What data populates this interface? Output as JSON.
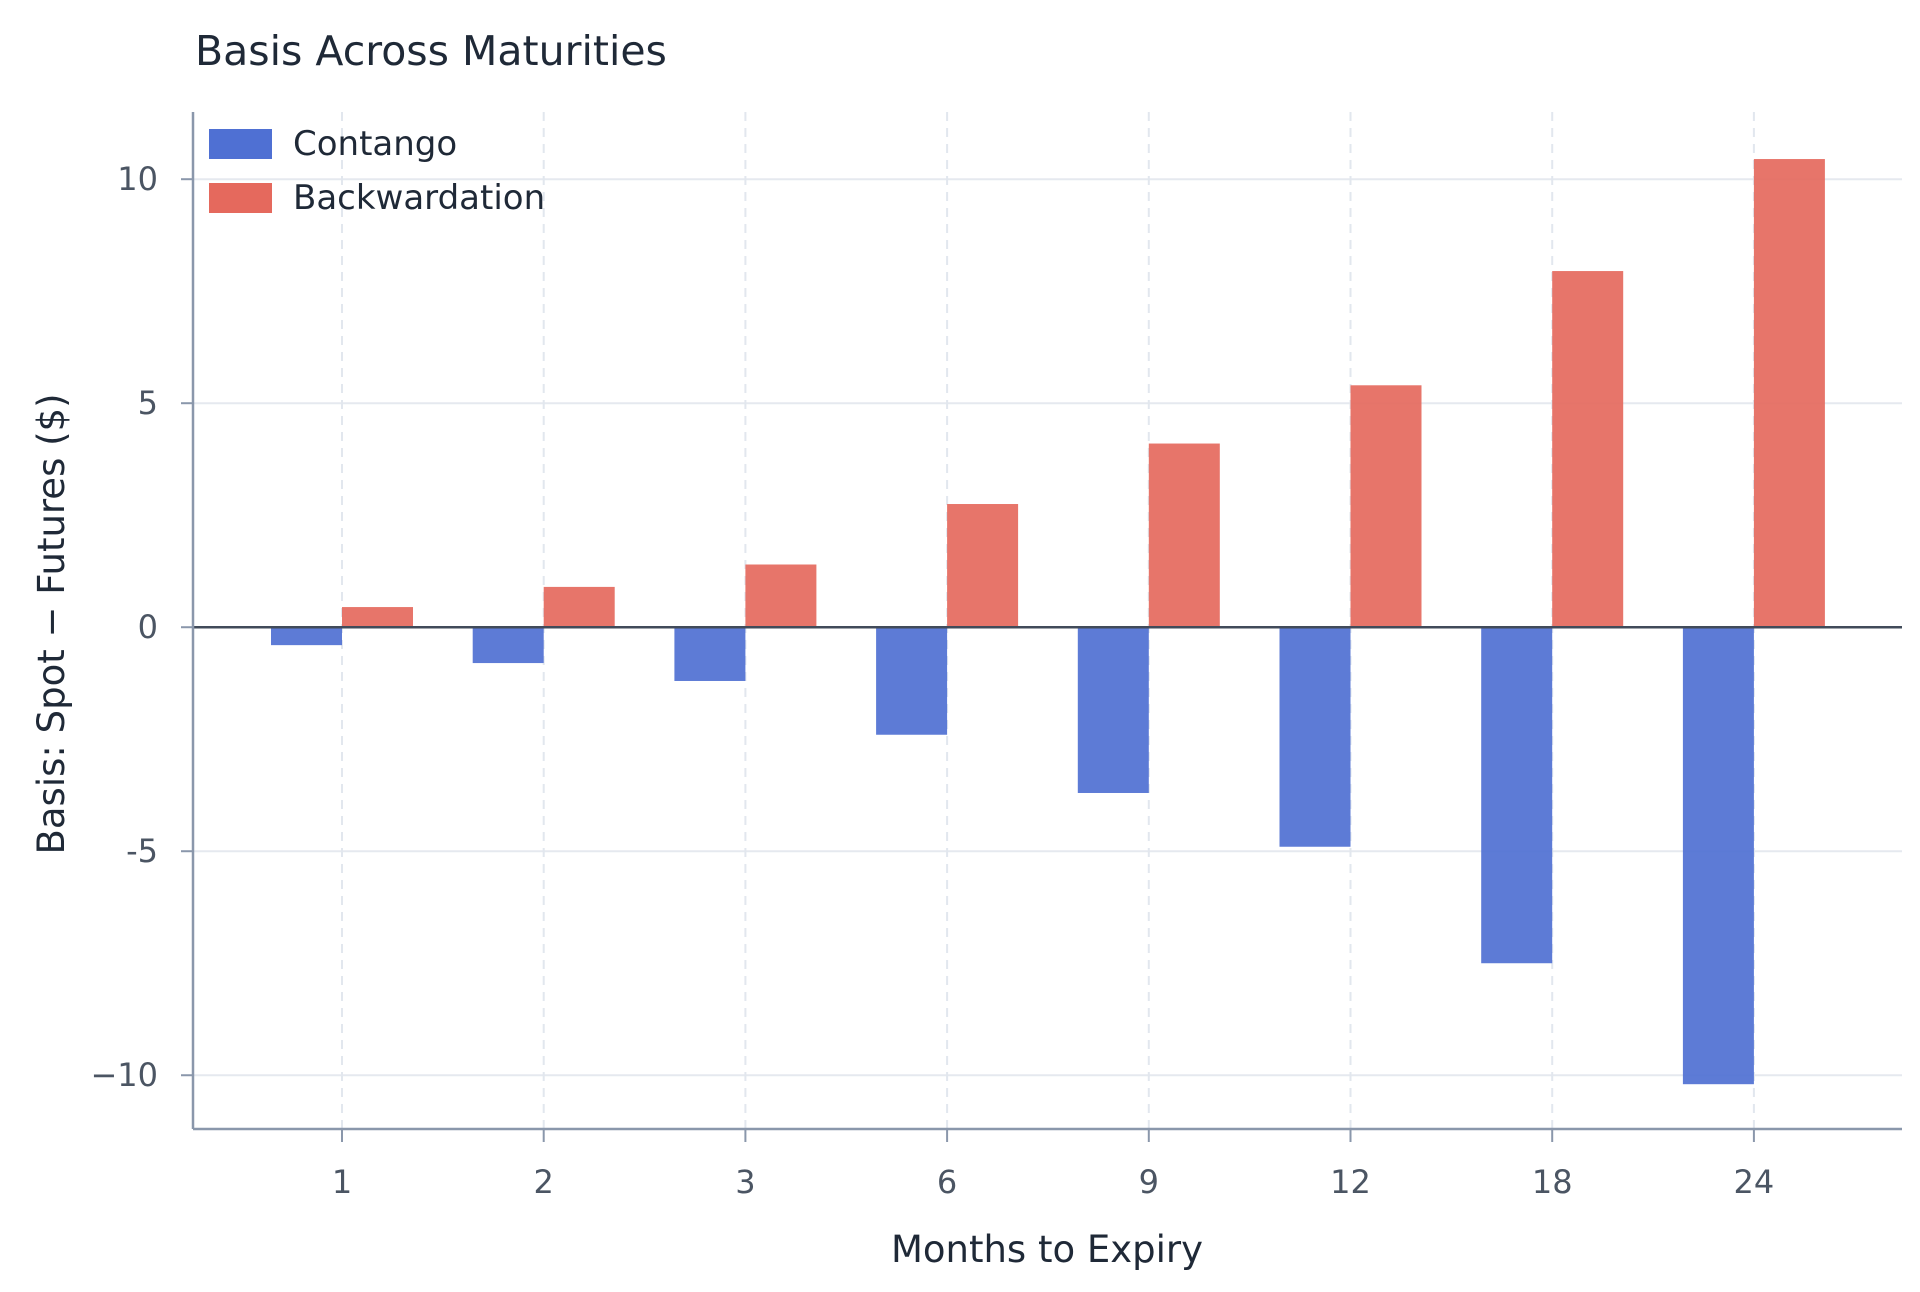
{
  "chart_data": {
    "type": "bar",
    "title": "Basis Across Maturities",
    "xlabel": "Months to Expiry",
    "ylabel": "Basis: Spot − Futures ($)",
    "categories": [
      "1",
      "2",
      "3",
      "6",
      "9",
      "12",
      "18",
      "24"
    ],
    "series": [
      {
        "name": "Contango",
        "color": "#4f70d3",
        "values": [
          -0.4,
          -0.8,
          -1.2,
          -2.4,
          -3.7,
          -4.9,
          -7.5,
          -10.2
        ]
      },
      {
        "name": "Backwardation",
        "color": "#e5695d",
        "values": [
          0.45,
          0.9,
          1.4,
          2.75,
          4.1,
          5.4,
          7.95,
          10.45
        ]
      }
    ],
    "ylim": [
      -11.2,
      11.5
    ],
    "yticks": [
      {
        "value": 10,
        "label": "10"
      },
      {
        "value": 5,
        "label": "5"
      },
      {
        "value": 0,
        "label": "0"
      },
      {
        "value": -5,
        "label": "-5"
      },
      {
        "value": -10,
        "label": "−10"
      }
    ],
    "grid": true,
    "legend_position": "top-left",
    "zero_line": true
  }
}
